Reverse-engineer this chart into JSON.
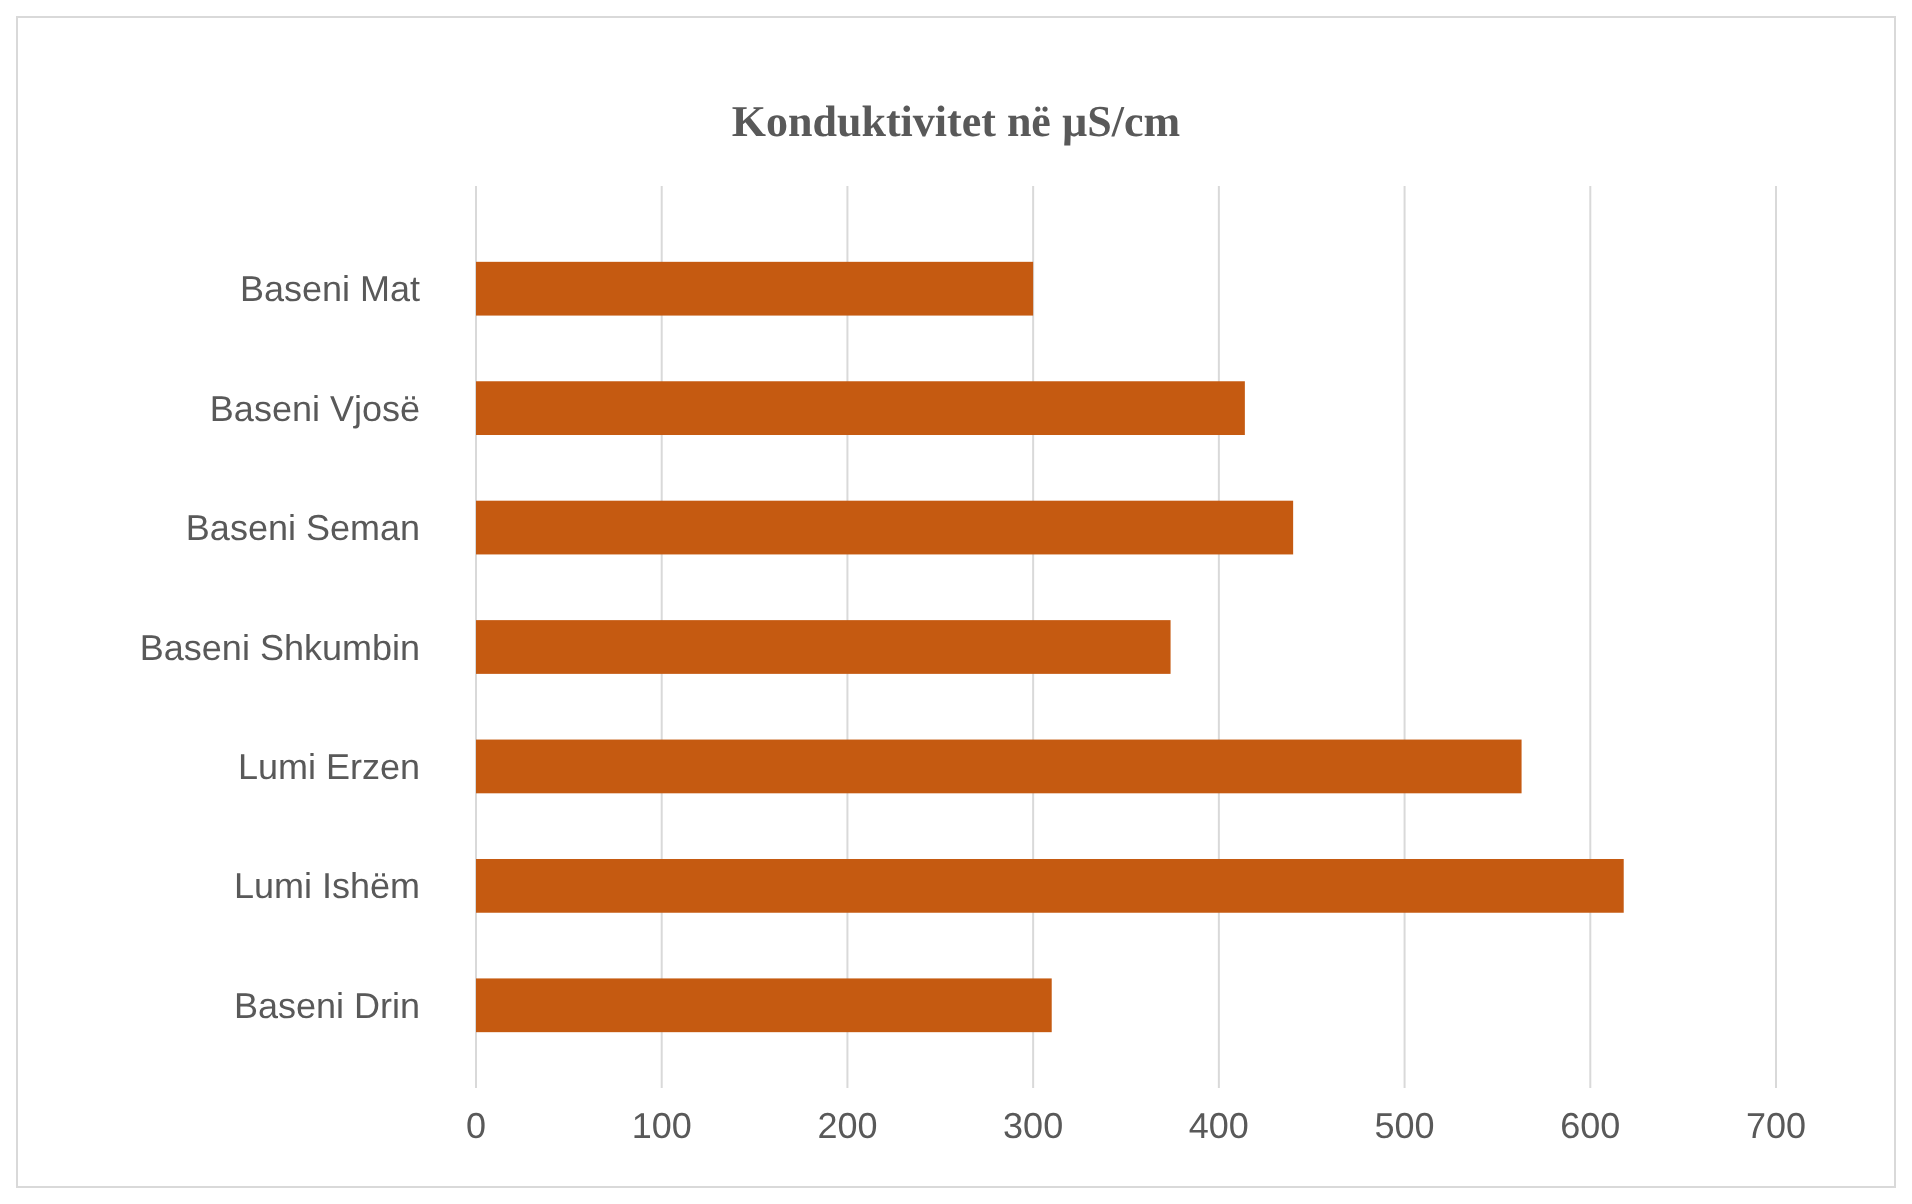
{
  "chart_data": {
    "type": "bar",
    "orientation": "horizontal",
    "title": "Konduktivitet në µS/cm",
    "categories": [
      "Baseni Mat",
      "Baseni Vjosë",
      "Baseni Seman",
      "Baseni Shkumbin",
      "Lumi Erzen",
      "Lumi Ishëm",
      "Baseni Drin"
    ],
    "values": [
      300,
      414,
      440,
      374,
      563,
      618,
      310
    ],
    "color": "#c55a11",
    "xlim": [
      0,
      700
    ],
    "xticks": [
      0,
      100,
      200,
      300,
      400,
      500,
      600,
      700
    ],
    "grid": "x"
  }
}
